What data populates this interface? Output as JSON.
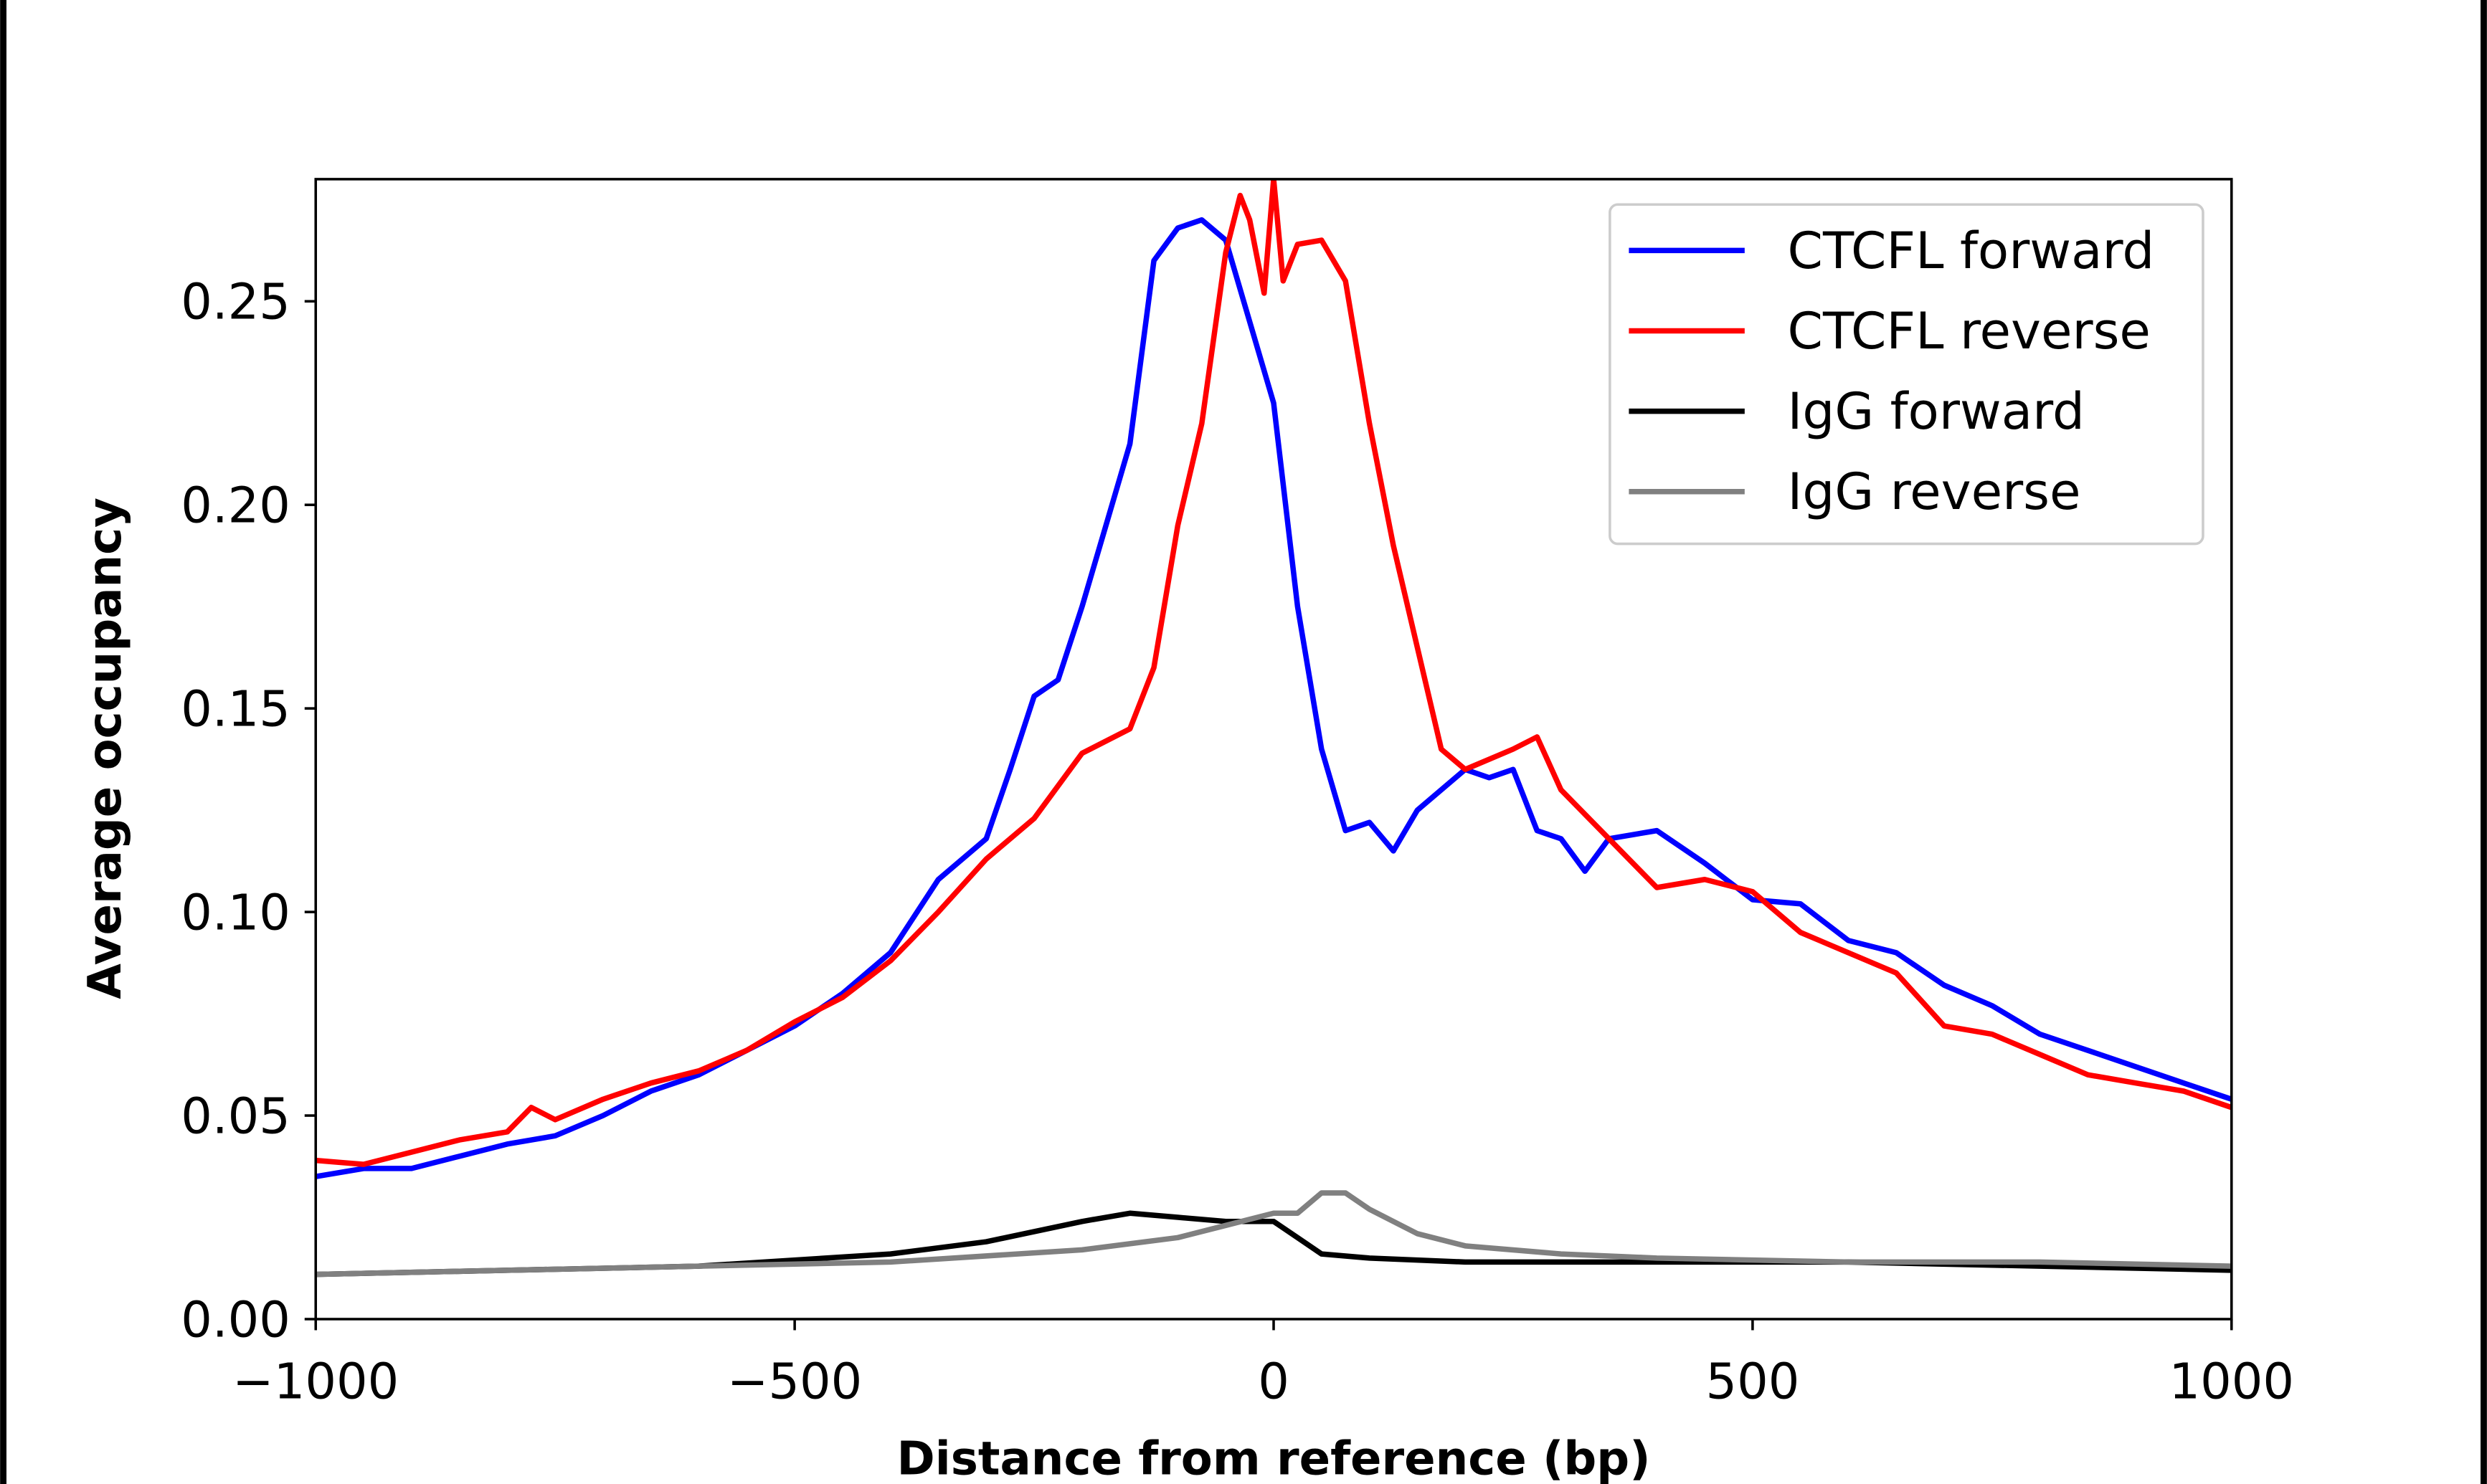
{
  "chart_data": {
    "type": "line",
    "title": "",
    "xlabel": "Distance from reference (bp)",
    "ylabel": "Average occupancy",
    "xlim": [
      -1000,
      1000
    ],
    "ylim": [
      0,
      0.28
    ],
    "xticks": [
      -1000,
      -500,
      0,
      500,
      1000
    ],
    "xtick_labels": [
      "−1000",
      "−500",
      "0",
      "500",
      "1000"
    ],
    "yticks": [
      0,
      0.05,
      0.1,
      0.15,
      0.2,
      0.25
    ],
    "ytick_labels": [
      "0.00",
      "0.05",
      "0.10",
      "0.15",
      "0.20",
      "0.25"
    ],
    "grid": false,
    "legend_position": "top-right",
    "series": [
      {
        "name": "CTCFL forward",
        "color": "#0000ff",
        "x": [
          -1000,
          -950,
          -900,
          -850,
          -800,
          -750,
          -700,
          -650,
          -600,
          -550,
          -500,
          -450,
          -400,
          -350,
          -300,
          -275,
          -250,
          -225,
          -200,
          -175,
          -150,
          -125,
          -100,
          -75,
          -50,
          -25,
          0,
          25,
          50,
          75,
          100,
          125,
          150,
          200,
          225,
          250,
          275,
          300,
          325,
          350,
          400,
          450,
          500,
          550,
          600,
          650,
          700,
          750,
          800,
          850,
          900,
          950,
          1000
        ],
        "y": [
          0.035,
          0.037,
          0.037,
          0.04,
          0.043,
          0.045,
          0.05,
          0.056,
          0.06,
          0.066,
          0.072,
          0.08,
          0.09,
          0.108,
          0.118,
          0.135,
          0.153,
          0.157,
          0.175,
          0.195,
          0.215,
          0.26,
          0.268,
          0.27,
          0.265,
          0.245,
          0.225,
          0.175,
          0.14,
          0.12,
          0.122,
          0.115,
          0.125,
          0.135,
          0.133,
          0.135,
          0.12,
          0.118,
          0.11,
          0.118,
          0.12,
          0.112,
          0.103,
          0.102,
          0.093,
          0.09,
          0.082,
          0.077,
          0.07,
          0.066,
          0.062,
          0.058,
          0.054
        ]
      },
      {
        "name": "CTCFL reverse",
        "color": "#ff0000",
        "x": [
          -1000,
          -950,
          -900,
          -850,
          -800,
          -775,
          -750,
          -700,
          -650,
          -600,
          -550,
          -500,
          -450,
          -400,
          -350,
          -300,
          -250,
          -200,
          -150,
          -125,
          -100,
          -75,
          -50,
          -35,
          -25,
          -10,
          0,
          10,
          25,
          50,
          75,
          100,
          125,
          150,
          175,
          200,
          250,
          275,
          300,
          350,
          400,
          450,
          500,
          550,
          600,
          650,
          700,
          750,
          800,
          850,
          900,
          950,
          1000
        ],
        "y": [
          0.039,
          0.038,
          0.041,
          0.044,
          0.046,
          0.052,
          0.049,
          0.054,
          0.058,
          0.061,
          0.066,
          0.073,
          0.079,
          0.088,
          0.1,
          0.113,
          0.123,
          0.139,
          0.145,
          0.16,
          0.195,
          0.22,
          0.262,
          0.276,
          0.27,
          0.252,
          0.28,
          0.255,
          0.264,
          0.265,
          0.255,
          0.22,
          0.19,
          0.165,
          0.14,
          0.135,
          0.14,
          0.143,
          0.13,
          0.118,
          0.106,
          0.108,
          0.105,
          0.095,
          0.09,
          0.085,
          0.072,
          0.07,
          0.065,
          0.06,
          0.058,
          0.056,
          0.052
        ]
      },
      {
        "name": "IgG forward",
        "color": "#000000",
        "x": [
          -1000,
          -800,
          -600,
          -400,
          -300,
          -200,
          -150,
          -100,
          -50,
          0,
          25,
          50,
          100,
          200,
          400,
          600,
          800,
          1000
        ],
        "y": [
          0.011,
          0.012,
          0.013,
          0.016,
          0.019,
          0.024,
          0.026,
          0.025,
          0.024,
          0.024,
          0.02,
          0.016,
          0.015,
          0.014,
          0.014,
          0.014,
          0.013,
          0.012
        ]
      },
      {
        "name": "IgG reverse",
        "color": "#808080",
        "x": [
          -1000,
          -800,
          -600,
          -400,
          -200,
          -100,
          -50,
          0,
          25,
          50,
          75,
          100,
          150,
          200,
          300,
          400,
          600,
          800,
          1000
        ],
        "y": [
          0.011,
          0.012,
          0.013,
          0.014,
          0.017,
          0.02,
          0.023,
          0.026,
          0.026,
          0.031,
          0.031,
          0.027,
          0.021,
          0.018,
          0.016,
          0.015,
          0.014,
          0.014,
          0.013
        ]
      }
    ]
  }
}
